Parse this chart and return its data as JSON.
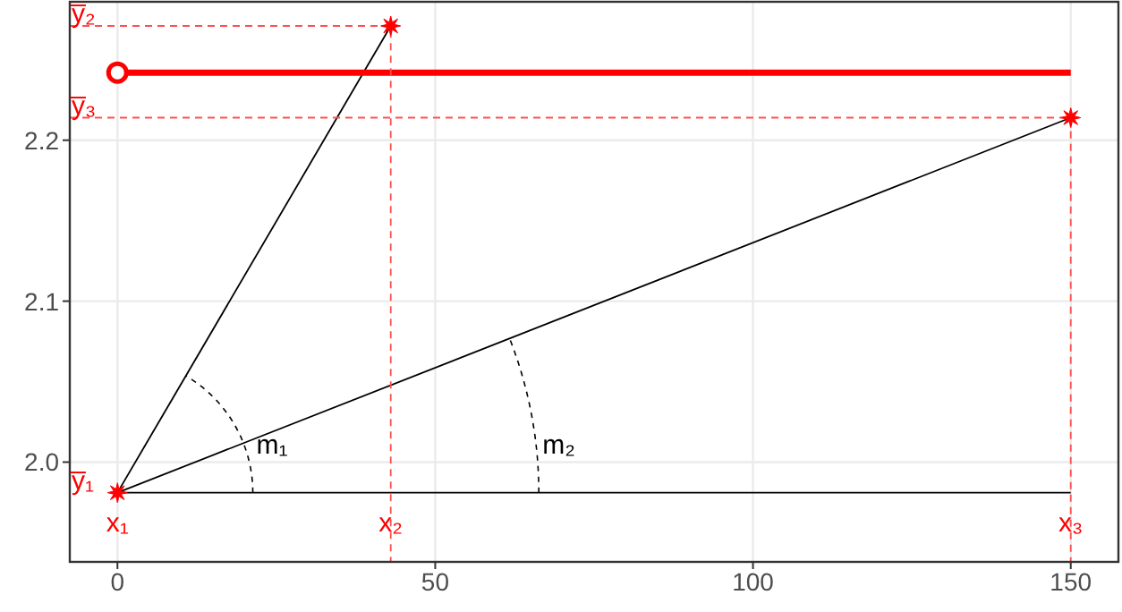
{
  "chart_data": {
    "type": "line",
    "xlim": [
      -7.5,
      157.5
    ],
    "xticks": [
      0,
      50,
      100,
      150
    ],
    "ylim": [
      1.938,
      2.286
    ],
    "yticks": [
      {
        "value": 2,
        "label": "2.0"
      },
      {
        "value": 2.1,
        "label": "2.1"
      },
      {
        "value": 2.2,
        "label": "2.2"
      }
    ],
    "grid": true,
    "series": [
      {
        "color": "#000000",
        "x": [
          0,
          43
        ],
        "values": [
          1.981,
          2.271
        ]
      },
      {
        "color": "#000000",
        "x": [
          0,
          150
        ],
        "values": [
          1.981,
          2.214
        ]
      },
      {
        "color": "#000000",
        "x": [
          0,
          150
        ],
        "values": [
          1.981,
          1.981
        ]
      },
      {
        "color": "#ff0000",
        "marker": "circle",
        "x": [
          0,
          150
        ],
        "values": [
          2.242,
          2.242
        ]
      },
      {
        "color": "#ff5050",
        "line_style": "dashed",
        "x": [
          -7.5,
          43,
          43
        ],
        "values": [
          2.271,
          2.271,
          1.938
        ]
      },
      {
        "color": "#ff5050",
        "line_style": "dashed",
        "x": [
          -7.5,
          150,
          150
        ],
        "values": [
          2.214,
          2.214,
          1.938
        ]
      },
      {
        "type": "scatter",
        "color": "#ff0000",
        "marker": "star",
        "x": [
          0,
          43,
          150
        ],
        "values": [
          1.981,
          2.271,
          2.214
        ]
      }
    ],
    "annotations": [
      "y̅₁",
      {
        "text": "y̅₂",
        "y": 2.271
      },
      {
        "text": "y̅₃",
        "y": 2.214
      },
      "x₁",
      {
        "text": "x₂",
        "x": 43
      },
      {
        "text": "x₃",
        "x": 150
      },
      {
        "text": "m₁",
        "x": 21.3,
        "y": 1.981
      },
      {
        "text": "m₂",
        "x": 66.3,
        "y": 1.981
      }
    ]
  }
}
